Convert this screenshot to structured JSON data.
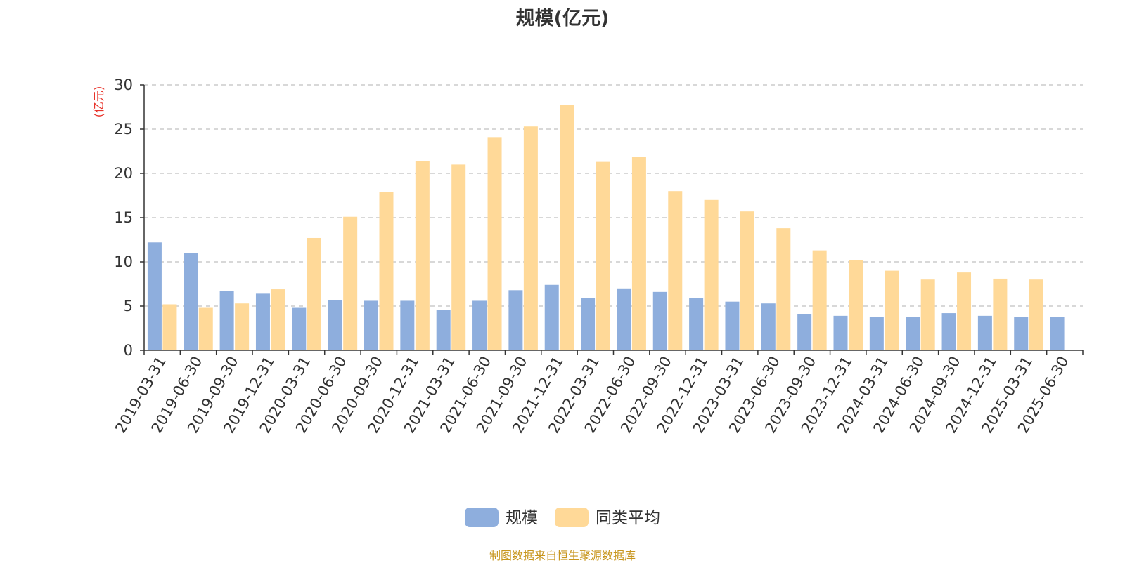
{
  "title": "规模(亿元)",
  "source_note": "制图数据来自恒生聚源数据库",
  "y_unit_label": "(亿元)",
  "colors": {
    "series_1": "#8eaedd",
    "series_2": "#ffd998",
    "unit_label": "#e8332a",
    "axis": "#333333",
    "grid": "#cccccc"
  },
  "chart_data": {
    "type": "bar",
    "title": "规模(亿元)",
    "ylabel": "(亿元)",
    "ylim": [
      0,
      30
    ],
    "yticks": [
      0,
      5,
      10,
      15,
      20,
      25,
      30
    ],
    "grid": true,
    "legend_position": "bottom",
    "categories": [
      "2019-03-31",
      "2019-06-30",
      "2019-09-30",
      "2019-12-31",
      "2020-03-31",
      "2020-06-30",
      "2020-09-30",
      "2020-12-31",
      "2021-03-31",
      "2021-06-30",
      "2021-09-30",
      "2021-12-31",
      "2022-03-31",
      "2022-06-30",
      "2022-09-30",
      "2022-12-31",
      "2023-03-31",
      "2023-06-30",
      "2023-09-30",
      "2023-12-31",
      "2024-03-31",
      "2024-06-30",
      "2024-09-30",
      "2024-12-31",
      "2025-03-31",
      "2025-06-30"
    ],
    "series": [
      {
        "name": "规模",
        "values": [
          12.2,
          11.0,
          6.7,
          6.4,
          4.8,
          5.7,
          5.6,
          5.6,
          4.6,
          5.6,
          6.8,
          7.4,
          5.9,
          7.0,
          6.6,
          5.9,
          5.5,
          5.3,
          4.1,
          3.9,
          3.8,
          3.8,
          4.2,
          3.9,
          3.8,
          3.8
        ]
      },
      {
        "name": "同类平均",
        "values": [
          5.2,
          4.8,
          5.3,
          6.9,
          12.7,
          15.1,
          17.9,
          21.4,
          21.0,
          24.1,
          25.3,
          27.7,
          21.3,
          21.9,
          18.0,
          17.0,
          15.7,
          13.8,
          11.3,
          10.2,
          9.0,
          8.0,
          8.8,
          8.1,
          8.0,
          null
        ]
      }
    ]
  }
}
